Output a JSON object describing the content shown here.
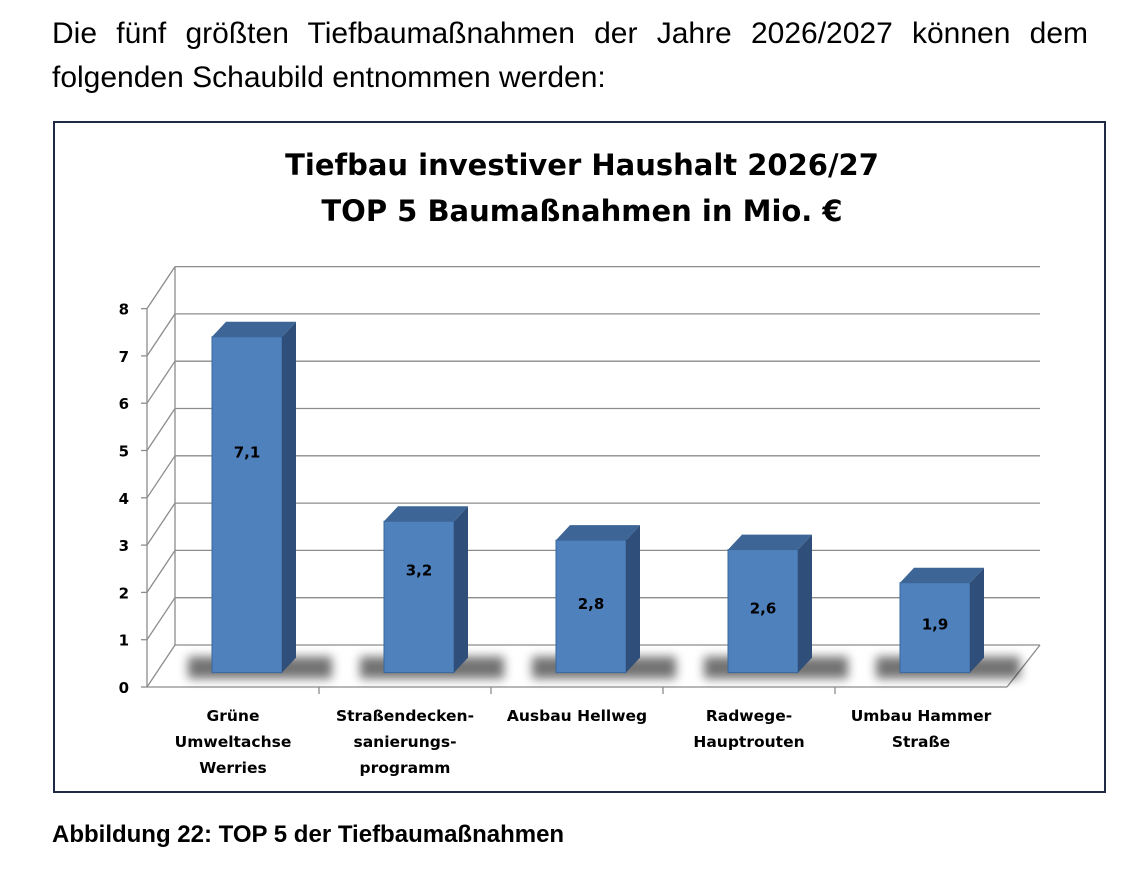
{
  "intro_text": "Die fünf größten Tiefbaumaßnahmen der Jahre 2026/2027 können dem folgenden Schaubild entnommen werden:",
  "caption": "Abbildung 22: TOP 5 der Tiefbaumaßnahmen",
  "chart_data": {
    "type": "bar",
    "title": [
      "Tiefbau investiver Haushalt 2026/27",
      "TOP 5 Baumaßnahmen in Mio. €"
    ],
    "categories": [
      [
        "Grüne",
        "Umweltachse",
        "Werries"
      ],
      [
        "Straßendecken-",
        "sanierungs-",
        "programm"
      ],
      [
        "Ausbau Hellweg"
      ],
      [
        "Radwege-",
        "Hauptrouten"
      ],
      [
        "Umbau Hammer",
        "Straße"
      ]
    ],
    "values": [
      7.1,
      3.2,
      2.8,
      2.6,
      1.9
    ],
    "data_labels": [
      "7,1",
      "3,2",
      "2,8",
      "2,6",
      "1,9"
    ],
    "yticks": [
      "0",
      "1",
      "2",
      "3",
      "4",
      "5",
      "6",
      "7",
      "8"
    ],
    "ylim": [
      0,
      8
    ],
    "grid": true,
    "legend": "none",
    "three_d": true,
    "colors": {
      "bar_front": "#4f81bd",
      "bar_side": "#2f4f7a",
      "bar_top": "#3d6596",
      "grid": "#8c8c8c",
      "frame_border": "#1f2a44"
    }
  }
}
